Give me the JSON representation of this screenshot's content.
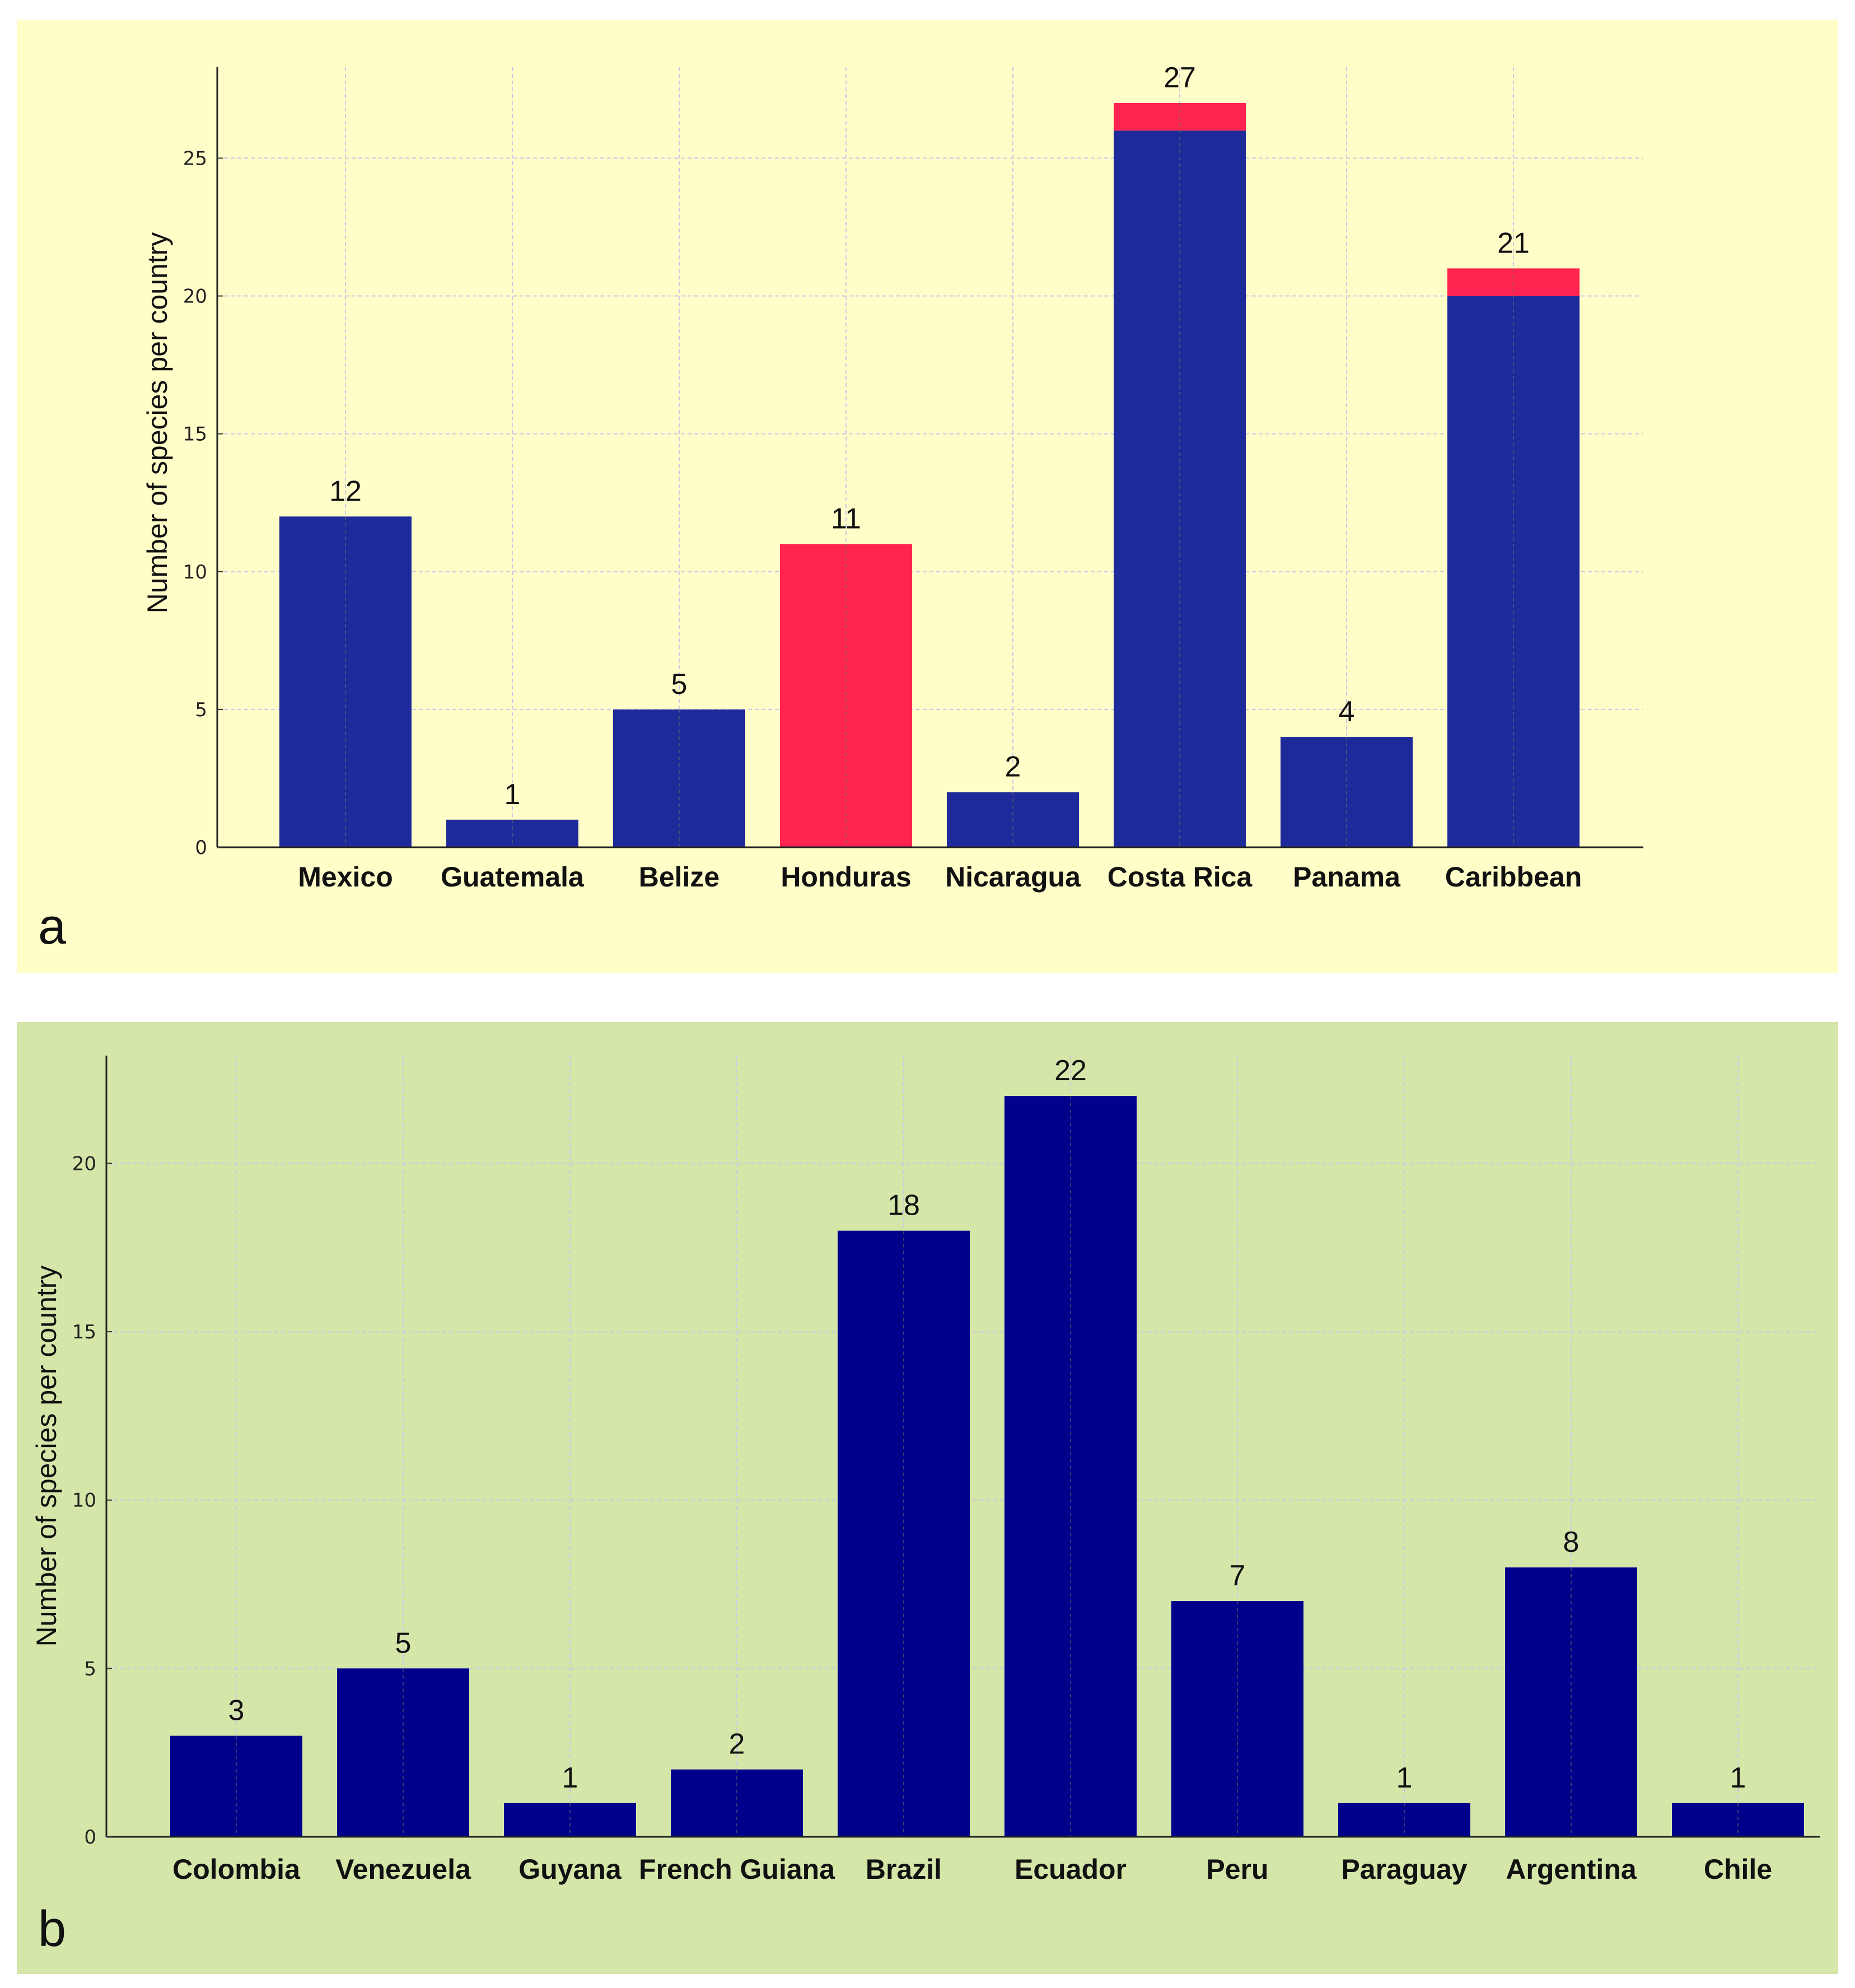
{
  "chart_data": [
    {
      "type": "bar",
      "stacked": true,
      "panel_label": "a",
      "background_color": "#FFFDC8",
      "categories": [
        "Mexico",
        "Guatemala",
        "Belize",
        "Honduras",
        "Nicaragua",
        "Costa Rica",
        "Panama",
        "Caribbean"
      ],
      "series": [
        {
          "color": "#1F2A9A",
          "values": [
            12,
            1,
            5,
            0,
            2,
            26,
            4,
            20
          ]
        },
        {
          "color": "#FF2350",
          "values": [
            0,
            0,
            0,
            11,
            0,
            1,
            0,
            1
          ]
        }
      ],
      "totals": [
        "12",
        "1",
        "5",
        "11",
        "2",
        "27",
        "4",
        "21"
      ],
      "xlabel": "",
      "ylabel": "Number of species per country",
      "ylim": [
        0,
        28.3
      ],
      "yticks": [
        "0",
        "5",
        "10",
        "15",
        "20",
        "25"
      ],
      "grid": true
    },
    {
      "type": "bar",
      "panel_label": "b",
      "background_color": "#D5E6A9",
      "categories": [
        "Colombia",
        "Venezuela",
        "Guyana",
        "French Guiana",
        "Brazil",
        "Ecuador",
        "Peru",
        "Paraguay",
        "Argentina",
        "Chile"
      ],
      "series": [
        {
          "color": "#00008B",
          "values": [
            3,
            5,
            1,
            2,
            18,
            22,
            7,
            1,
            8,
            1
          ]
        }
      ],
      "totals": [
        "3",
        "5",
        "1",
        "2",
        "18",
        "22",
        "7",
        "1",
        "8",
        "1"
      ],
      "xlabel": "",
      "ylabel": "Number of species per country",
      "ylim": [
        0,
        23.2
      ],
      "yticks": [
        "0",
        "5",
        "10",
        "15",
        "20"
      ],
      "grid": true
    }
  ]
}
